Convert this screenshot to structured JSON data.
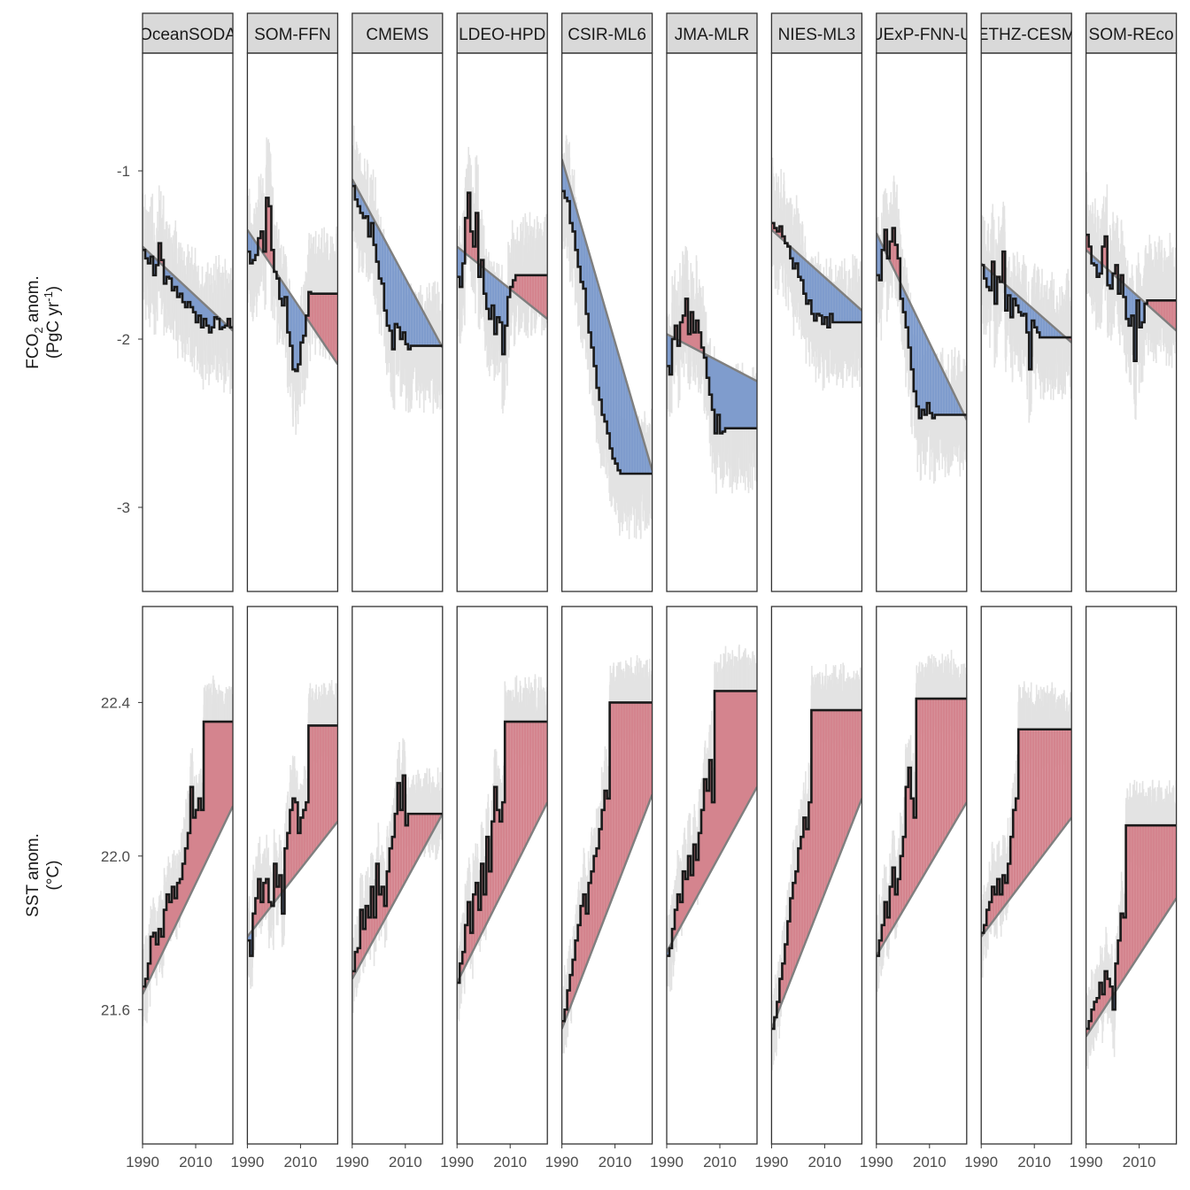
{
  "chart_data": {
    "type": "line",
    "title": "",
    "x_ticks": [
      1990,
      2010
    ],
    "xlim": [
      1990,
      2024
    ],
    "colors": {
      "above_trend": "#D4848E",
      "below_trend": "#7F9CCD",
      "monthly_band": "#E3E3E3",
      "annual_line": "#1A1A1A",
      "trend_line": "#7F7F7F",
      "strip_fill": "#D9D9D9"
    },
    "products": [
      "OceanSODA",
      "SOM-FFN",
      "CMEMS",
      "LDEO-HPD",
      "CSIR-ML6",
      "JMA-MLR",
      "NIES-ML3",
      "UExP-FNN-U",
      "ETHZ-CESM",
      "SOM-REco"
    ],
    "panels": [
      {
        "ylabel": "FCO₂ anom. (PgC yr⁻¹)",
        "ylabel_line1_main": "FCO",
        "ylabel_line1_sub": "2",
        "ylabel_line1_rest": " anom.",
        "ylabel_line2_main": "(PgC yr",
        "ylabel_line2_sup": "-1",
        "ylabel_line2_rest": ")",
        "ylim": [
          -3.5,
          -0.3
        ],
        "y_ticks": [
          -3,
          -2,
          -1
        ],
        "y_tick_labels": [
          "-3",
          "-2",
          "-1"
        ],
        "series": [
          {
            "product": "OceanSODA",
            "trend": [
              -1.45,
              -1.95
            ],
            "values": [
              -1.47,
              -1.52,
              -1.55,
              -1.51,
              -1.62,
              -1.56,
              -1.43,
              -1.53,
              -1.67,
              -1.63,
              -1.64,
              -1.71,
              -1.69,
              -1.75,
              -1.73,
              -1.78,
              -1.81,
              -1.78,
              -1.81,
              -1.84,
              -1.9,
              -1.86,
              -1.93,
              -1.88,
              -1.92,
              -1.96,
              -1.93,
              -1.87,
              -1.88,
              -1.94,
              -1.93,
              -1.92,
              -1.88,
              -1.93
            ],
            "spread": 0.45
          },
          {
            "product": "SOM-FFN",
            "trend": [
              -1.35,
              -2.15
            ],
            "values": [
              -1.48,
              -1.55,
              -1.53,
              -1.5,
              -1.4,
              -1.36,
              -1.48,
              -1.16,
              -1.21,
              -1.47,
              -1.6,
              -1.64,
              -1.76,
              -1.8,
              -1.75,
              -1.96,
              -2.04,
              -2.18,
              -2.19,
              -2.15,
              -2.02,
              -1.98,
              -1.86,
              -1.72,
              -1.73,
              -1.73,
              -1.73,
              -1.73,
              -1.73,
              -1.73,
              -1.73,
              -1.73,
              -1.73,
              -1.73
            ],
            "spread": 0.45
          },
          {
            "product": "CMEMS",
            "trend": [
              -1.05,
              -2.05
            ],
            "values": [
              -1.09,
              -1.17,
              -1.21,
              -1.25,
              -1.28,
              -1.27,
              -1.39,
              -1.31,
              -1.44,
              -1.54,
              -1.64,
              -1.67,
              -1.83,
              -1.92,
              -1.95,
              -2.06,
              -1.91,
              -1.93,
              -2.0,
              -1.96,
              -2.03,
              -2.06,
              -2.04,
              -2.04,
              -2.04,
              -2.04,
              -2.04,
              -2.04,
              -2.04,
              -2.04,
              -2.04,
              -2.04,
              -2.04,
              -2.04
            ],
            "spread": 0.45
          },
          {
            "product": "LDEO-HPD",
            "trend": [
              -1.45,
              -1.88
            ],
            "values": [
              -1.63,
              -1.69,
              -1.55,
              -1.28,
              -1.13,
              -1.36,
              -1.45,
              -1.25,
              -1.63,
              -1.53,
              -1.73,
              -1.82,
              -1.88,
              -1.8,
              -1.97,
              -1.87,
              -1.9,
              -2.09,
              -1.92,
              -1.75,
              -1.69,
              -1.65,
              -1.62,
              -1.62,
              -1.62,
              -1.62,
              -1.62,
              -1.62,
              -1.62,
              -1.62,
              -1.62,
              -1.62,
              -1.62,
              -1.62
            ],
            "spread": 0.45
          },
          {
            "product": "CSIR-ML6",
            "trend": [
              -0.93,
              -2.78
            ],
            "values": [
              -1.12,
              -1.16,
              -1.18,
              -1.31,
              -1.36,
              -1.47,
              -1.57,
              -1.66,
              -1.7,
              -1.85,
              -1.96,
              -2.05,
              -2.16,
              -2.29,
              -2.36,
              -2.45,
              -2.49,
              -2.56,
              -2.65,
              -2.71,
              -2.74,
              -2.78,
              -2.8,
              -2.8,
              -2.8,
              -2.8,
              -2.8,
              -2.8,
              -2.8,
              -2.8,
              -2.8,
              -2.8,
              -2.8,
              -2.8
            ],
            "spread": 0.45
          },
          {
            "product": "JMA-MLR",
            "trend": [
              -1.97,
              -2.25
            ],
            "values": [
              -2.16,
              -2.21,
              -2.0,
              -1.92,
              -2.04,
              -1.9,
              -1.86,
              -1.76,
              -1.97,
              -1.84,
              -1.96,
              -1.89,
              -1.96,
              -2.05,
              -2.11,
              -2.23,
              -2.33,
              -2.42,
              -2.56,
              -2.45,
              -2.56,
              -2.55,
              -2.53,
              -2.53,
              -2.53,
              -2.53,
              -2.53,
              -2.53,
              -2.53,
              -2.53,
              -2.53,
              -2.53,
              -2.53,
              -2.53
            ],
            "spread": 0.45
          },
          {
            "product": "NIES-ML3",
            "trend": [
              -1.35,
              -1.83
            ],
            "values": [
              -1.31,
              -1.34,
              -1.36,
              -1.33,
              -1.39,
              -1.43,
              -1.45,
              -1.52,
              -1.58,
              -1.55,
              -1.63,
              -1.65,
              -1.73,
              -1.79,
              -1.77,
              -1.85,
              -1.89,
              -1.85,
              -1.86,
              -1.91,
              -1.87,
              -1.93,
              -1.85,
              -1.9,
              -1.9,
              -1.9,
              -1.9,
              -1.9,
              -1.9,
              -1.9,
              -1.9,
              -1.9,
              -1.9,
              -1.9
            ],
            "spread": 0.45
          },
          {
            "product": "UExP-FNN-U",
            "trend": [
              -1.37,
              -2.48
            ],
            "values": [
              -1.62,
              -1.65,
              -1.47,
              -1.35,
              -1.52,
              -1.42,
              -1.34,
              -1.44,
              -1.52,
              -1.76,
              -1.84,
              -1.93,
              -2.05,
              -2.18,
              -2.31,
              -2.4,
              -2.47,
              -2.42,
              -2.45,
              -2.38,
              -2.44,
              -2.47,
              -2.45,
              -2.45,
              -2.45,
              -2.45,
              -2.45,
              -2.45,
              -2.45,
              -2.45,
              -2.45,
              -2.45,
              -2.45,
              -2.45
            ],
            "spread": 0.45
          },
          {
            "product": "ETHZ-CESM",
            "trend": [
              -1.55,
              -2.02
            ],
            "values": [
              -1.56,
              -1.64,
              -1.69,
              -1.71,
              -1.54,
              -1.79,
              -1.63,
              -1.66,
              -1.48,
              -1.83,
              -1.74,
              -1.87,
              -1.76,
              -1.8,
              -1.84,
              -1.86,
              -1.85,
              -1.96,
              -2.18,
              -1.89,
              -1.93,
              -1.96,
              -1.99,
              -1.99,
              -1.99,
              -1.99,
              -1.99,
              -1.99,
              -1.99,
              -1.99,
              -1.99,
              -1.99,
              -1.99,
              -1.99
            ],
            "spread": 0.45
          },
          {
            "product": "SOM-REco",
            "trend": [
              -1.47,
              -1.95
            ],
            "values": [
              -1.38,
              -1.45,
              -1.55,
              -1.56,
              -1.63,
              -1.61,
              -1.45,
              -1.39,
              -1.68,
              -1.7,
              -1.61,
              -1.56,
              -1.73,
              -1.62,
              -1.75,
              -1.88,
              -1.92,
              -1.86,
              -2.13,
              -1.77,
              -1.93,
              -1.9,
              -1.79,
              -1.77,
              -1.77,
              -1.77,
              -1.77,
              -1.77,
              -1.77,
              -1.77,
              -1.77,
              -1.77,
              -1.77,
              -1.77
            ],
            "spread": 0.45
          }
        ]
      },
      {
        "ylabel": "SST anom. (°C)",
        "ylabel_line1_main": "SST anom.",
        "ylabel_line1_sub": "",
        "ylabel_line1_rest": "",
        "ylabel_line2_main": "(°C)",
        "ylabel_line2_sup": "",
        "ylabel_line2_rest": "",
        "ylim": [
          21.25,
          22.65
        ],
        "y_ticks": [
          21.6,
          22.0,
          22.4
        ],
        "y_tick_labels": [
          "21.6",
          "22.0",
          "22.4"
        ],
        "series": [
          {
            "product": "OceanSODA",
            "trend": [
              21.64,
              22.13
            ],
            "values": [
              21.66,
              21.68,
              21.72,
              21.79,
              21.8,
              21.77,
              21.81,
              21.79,
              21.86,
              21.9,
              21.88,
              21.92,
              21.89,
              21.93,
              21.94,
              21.98,
              22.02,
              22.06,
              22.18,
              22.1,
              22.12,
              22.15,
              22.12,
              22.35,
              22.35,
              22.35,
              22.35,
              22.35,
              22.35,
              22.35,
              22.35,
              22.35,
              22.35,
              22.35
            ],
            "spread": 0.14
          },
          {
            "product": "SOM-FFN",
            "trend": [
              21.79,
              22.09
            ],
            "values": [
              21.78,
              21.74,
              21.85,
              21.89,
              21.94,
              21.88,
              21.93,
              21.94,
              21.88,
              21.87,
              21.98,
              21.92,
              21.95,
              21.85,
              22.02,
              22.06,
              22.12,
              22.15,
              22.14,
              22.06,
              22.1,
              22.12,
              22.14,
              22.34,
              22.34,
              22.34,
              22.34,
              22.34,
              22.34,
              22.34,
              22.34,
              22.34,
              22.34,
              22.34
            ],
            "spread": 0.14
          },
          {
            "product": "CMEMS",
            "trend": [
              21.68,
              22.11
            ],
            "values": [
              21.7,
              21.75,
              21.76,
              21.86,
              21.81,
              21.87,
              21.84,
              21.92,
              21.84,
              21.98,
              21.9,
              21.92,
              21.87,
              21.96,
              22.02,
              22.05,
              22.11,
              22.19,
              22.12,
              22.21,
              22.08,
              22.11,
              22.11,
              22.11,
              22.11,
              22.11,
              22.11,
              22.11,
              22.11,
              22.11,
              22.11,
              22.11,
              22.11,
              22.11
            ],
            "spread": 0.14
          },
          {
            "product": "LDEO-HPD",
            "trend": [
              21.67,
              22.14
            ],
            "values": [
              21.67,
              21.72,
              21.75,
              21.82,
              21.88,
              21.8,
              21.9,
              21.93,
              21.86,
              21.98,
              21.9,
              22.05,
              21.96,
              22.09,
              22.18,
              22.12,
              22.09,
              22.14,
              22.35,
              22.35,
              22.35,
              22.35,
              22.35,
              22.35,
              22.35,
              22.35,
              22.35,
              22.35,
              22.35,
              22.35,
              22.35,
              22.35,
              22.35,
              22.35
            ],
            "spread": 0.14
          },
          {
            "product": "CSIR-ML6",
            "trend": [
              21.55,
              22.16
            ],
            "values": [
              21.57,
              21.6,
              21.65,
              21.69,
              21.73,
              21.78,
              21.82,
              21.87,
              21.9,
              21.85,
              21.93,
              21.96,
              22.0,
              22.02,
              22.07,
              22.12,
              22.17,
              22.15,
              22.4,
              22.4,
              22.4,
              22.4,
              22.4,
              22.4,
              22.4,
              22.4,
              22.4,
              22.4,
              22.4,
              22.4,
              22.4,
              22.4,
              22.4,
              22.4
            ],
            "spread": 0.14
          },
          {
            "product": "JMA-MLR",
            "trend": [
              21.75,
              22.18
            ],
            "values": [
              21.74,
              21.76,
              21.81,
              21.86,
              21.9,
              21.88,
              21.96,
              21.94,
              22.0,
              21.95,
              22.03,
              21.99,
              22.06,
              22.12,
              22.2,
              22.17,
              22.25,
              22.14,
              22.43,
              22.43,
              22.43,
              22.43,
              22.43,
              22.43,
              22.43,
              22.43,
              22.43,
              22.43,
              22.43,
              22.43,
              22.43,
              22.43,
              22.43,
              22.43
            ],
            "spread": 0.14
          },
          {
            "product": "NIES-ML3",
            "trend": [
              21.55,
              22.15
            ],
            "values": [
              21.55,
              21.58,
              21.62,
              21.68,
              21.72,
              21.77,
              21.83,
              21.89,
              21.93,
              21.96,
              22.02,
              22.05,
              22.1,
              22.07,
              22.14,
              22.38,
              22.38,
              22.38,
              22.38,
              22.38,
              22.38,
              22.38,
              22.38,
              22.38,
              22.38,
              22.38,
              22.38,
              22.38,
              22.38,
              22.38,
              22.38,
              22.38,
              22.38,
              22.38
            ],
            "spread": 0.14
          },
          {
            "product": "UExP-FNN-U",
            "trend": [
              21.74,
              22.14
            ],
            "values": [
              21.74,
              21.78,
              21.82,
              21.88,
              21.84,
              21.92,
              21.97,
              21.9,
              21.94,
              22.0,
              22.05,
              22.18,
              22.23,
              22.15,
              22.1,
              22.41,
              22.41,
              22.41,
              22.41,
              22.41,
              22.41,
              22.41,
              22.41,
              22.41,
              22.41,
              22.41,
              22.41,
              22.41,
              22.41,
              22.41,
              22.41,
              22.41,
              22.41,
              22.41
            ],
            "spread": 0.14
          },
          {
            "product": "ETHZ-CESM",
            "trend": [
              21.79,
              22.1
            ],
            "values": [
              21.8,
              21.82,
              21.86,
              21.88,
              21.92,
              21.9,
              21.94,
              21.9,
              21.95,
              21.93,
              21.98,
              22.05,
              22.12,
              22.15,
              22.33,
              22.33,
              22.33,
              22.33,
              22.33,
              22.33,
              22.33,
              22.33,
              22.33,
              22.33,
              22.33,
              22.33,
              22.33,
              22.33,
              22.33,
              22.33,
              22.33,
              22.33,
              22.33,
              22.33
            ],
            "spread": 0.14
          },
          {
            "product": "SOM-REco",
            "trend": [
              21.53,
              21.89
            ],
            "values": [
              21.55,
              21.57,
              21.6,
              21.62,
              21.63,
              21.67,
              21.64,
              21.7,
              21.68,
              21.66,
              21.6,
              21.72,
              21.78,
              21.85,
              21.84,
              22.08,
              22.08,
              22.08,
              22.08,
              22.08,
              22.08,
              22.08,
              22.08,
              22.08,
              22.08,
              22.08,
              22.08,
              22.08,
              22.08,
              22.08,
              22.08,
              22.08,
              22.08,
              22.08
            ],
            "spread": 0.14
          }
        ]
      }
    ]
  }
}
